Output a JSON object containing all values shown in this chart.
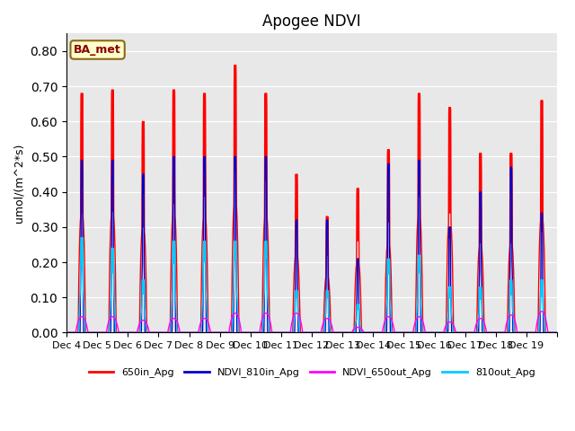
{
  "title": "Apogee NDVI",
  "ylabel": "umol/(m^2*s)",
  "ylim": [
    0.0,
    0.85
  ],
  "yticks": [
    0.0,
    0.1,
    0.2,
    0.3,
    0.4,
    0.5,
    0.6,
    0.7,
    0.8
  ],
  "background_color": "#e8e8e8",
  "legend_label": "BA_met",
  "series_colors": {
    "650in_Apg": "#ff0000",
    "NDVI_810in_Apg": "#0000cc",
    "NDVI_650out_Apg": "#ff00ff",
    "810out_Apg": "#00ccff"
  },
  "xtick_labels": [
    "Dec 4",
    "Dec 5",
    "Dec 6",
    "Dec 7",
    "Dec 8",
    "Dec 9",
    "Dec 10",
    "Dec 11",
    "Dec 12",
    "Dec 13",
    "Dec 14",
    "Dec 15",
    "Dec 16",
    "Dec 17",
    "Dec 18",
    "Dec 19"
  ],
  "num_days": 16,
  "peaks_650in": [
    0.68,
    0.69,
    0.6,
    0.69,
    0.68,
    0.76,
    0.68,
    0.45,
    0.33,
    0.41,
    0.52,
    0.68,
    0.64,
    0.51,
    0.51,
    0.66
  ],
  "peaks_810in": [
    0.49,
    0.49,
    0.45,
    0.5,
    0.5,
    0.5,
    0.5,
    0.32,
    0.32,
    0.21,
    0.48,
    0.49,
    0.3,
    0.4,
    0.47,
    0.34
  ],
  "peaks_650out": [
    0.045,
    0.045,
    0.035,
    0.04,
    0.04,
    0.055,
    0.055,
    0.055,
    0.04,
    0.015,
    0.045,
    0.045,
    0.03,
    0.04,
    0.05,
    0.06
  ],
  "peaks_810out": [
    0.27,
    0.24,
    0.15,
    0.26,
    0.26,
    0.26,
    0.26,
    0.12,
    0.12,
    0.08,
    0.21,
    0.22,
    0.13,
    0.13,
    0.15,
    0.15
  ],
  "figsize": [
    6.4,
    4.8
  ],
  "dpi": 100
}
